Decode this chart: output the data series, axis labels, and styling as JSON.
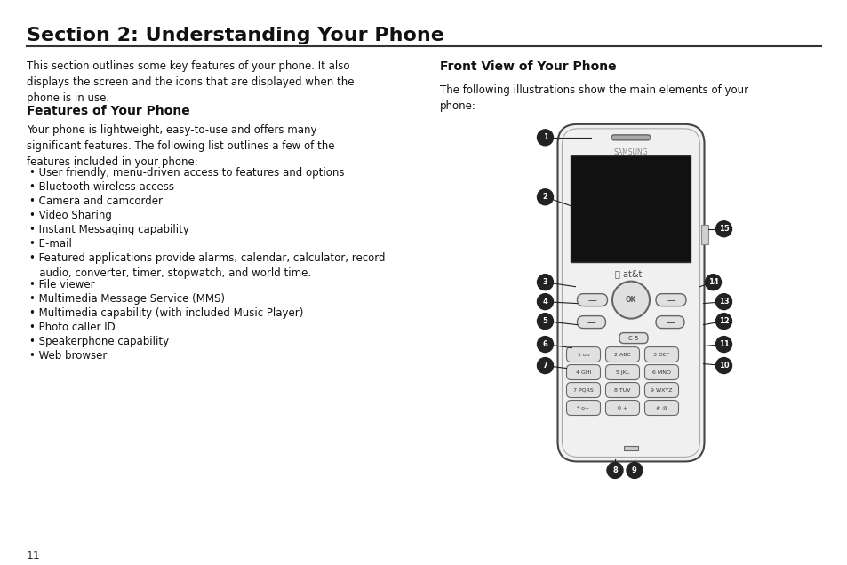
{
  "title": "Section 2: Understanding Your Phone",
  "title_fontsize": 16,
  "background_color": "#ffffff",
  "page_number": "11",
  "left_column": {
    "intro_text": "This section outlines some key features of your phone. It also\ndisplays the screen and the icons that are displayed when the\nphone is in use.",
    "features_heading": "Features of Your Phone",
    "features_intro": "Your phone is lightweight, easy-to-use and offers many\nsignificant features. The following list outlines a few of the\nfeatures included in your phone:",
    "bullet_points": [
      "User friendly, menu-driven access to features and options",
      "Bluetooth wireless access",
      "Camera and camcorder",
      "Video Sharing",
      "Instant Messaging capability",
      "E-mail",
      "Featured applications provide alarms, calendar, calculator, record\n   audio, converter, timer, stopwatch, and world time.",
      "File viewer",
      "Multimedia Message Service (MMS)",
      "Multimedia capability (with included Music Player)",
      "Photo caller ID",
      "Speakerphone capability",
      "Web browser"
    ]
  },
  "right_column": {
    "front_view_heading": "Front View of Your Phone",
    "front_view_intro": "The following illustrations show the main elements of your\nphone:"
  }
}
